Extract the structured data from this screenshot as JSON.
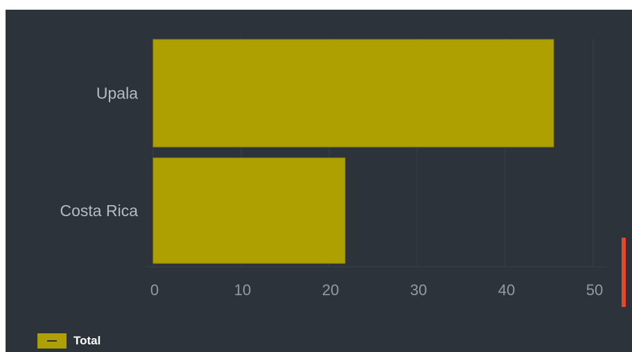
{
  "chart_data": {
    "type": "bar",
    "orientation": "horizontal",
    "categories": [
      "Upala",
      "Costa Rica"
    ],
    "series": [
      {
        "name": "Total",
        "values": [
          45.5,
          21.8
        ],
        "color": "#ada000"
      }
    ],
    "x_ticks": [
      "0",
      "10",
      "20",
      "30",
      "40",
      "50"
    ],
    "xlim": [
      0,
      50
    ],
    "grid": true,
    "legend": "bottom-left"
  },
  "colors": {
    "background": "#2d333b",
    "bar": "#ada000",
    "grid": "#34414a",
    "accent_marker": "#e8452d"
  }
}
